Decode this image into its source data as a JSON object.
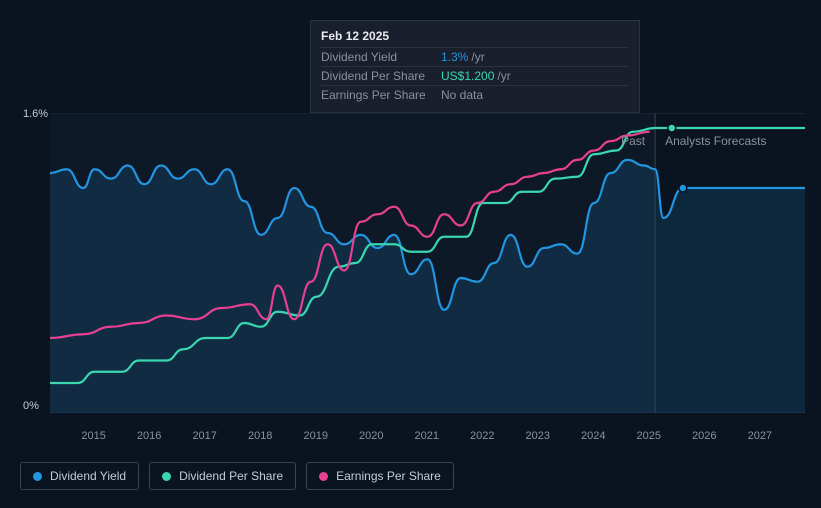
{
  "tooltip": {
    "date": "Feb 12 2025",
    "rows": [
      {
        "label": "Dividend Yield",
        "value": "1.3%",
        "suffix": "/yr",
        "color": "#2394df"
      },
      {
        "label": "Dividend Per Share",
        "value": "US$1.200",
        "suffix": "/yr",
        "color": "#39d6b0"
      },
      {
        "label": "Earnings Per Share",
        "value": "No data",
        "suffix": "",
        "color": "#8a9099"
      }
    ]
  },
  "chart": {
    "background": "#0a1420",
    "grid_color": "#2a3142",
    "ylim": [
      0,
      1.6
    ],
    "y_ticks": [
      {
        "v": 1.6,
        "label": "1.6%"
      },
      {
        "v": 0,
        "label": "0%"
      }
    ],
    "x_years": [
      2015,
      2016,
      2017,
      2018,
      2019,
      2020,
      2021,
      2022,
      2023,
      2024,
      2025,
      2026,
      2027
    ],
    "x_domain": [
      2014.2,
      2027.8
    ],
    "past_end": 2025.1,
    "labels": {
      "past": "Past",
      "forecast": "Analysts Forecasts"
    },
    "series": {
      "dividend_yield": {
        "name": "Dividend Yield",
        "color": "#2394df",
        "fill": "rgba(35,148,223,0.15)",
        "points": [
          [
            2014.2,
            1.28
          ],
          [
            2014.5,
            1.3
          ],
          [
            2014.8,
            1.2
          ],
          [
            2015.0,
            1.3
          ],
          [
            2015.3,
            1.25
          ],
          [
            2015.6,
            1.32
          ],
          [
            2015.9,
            1.22
          ],
          [
            2016.2,
            1.32
          ],
          [
            2016.5,
            1.25
          ],
          [
            2016.8,
            1.3
          ],
          [
            2017.1,
            1.22
          ],
          [
            2017.4,
            1.3
          ],
          [
            2017.7,
            1.13
          ],
          [
            2018.0,
            0.95
          ],
          [
            2018.3,
            1.04
          ],
          [
            2018.6,
            1.2
          ],
          [
            2018.9,
            1.1
          ],
          [
            2019.2,
            0.96
          ],
          [
            2019.5,
            0.9
          ],
          [
            2019.8,
            0.95
          ],
          [
            2020.1,
            0.88
          ],
          [
            2020.4,
            0.95
          ],
          [
            2020.7,
            0.74
          ],
          [
            2021.0,
            0.82
          ],
          [
            2021.3,
            0.55
          ],
          [
            2021.6,
            0.72
          ],
          [
            2021.9,
            0.7
          ],
          [
            2022.2,
            0.8
          ],
          [
            2022.5,
            0.95
          ],
          [
            2022.8,
            0.78
          ],
          [
            2023.1,
            0.88
          ],
          [
            2023.4,
            0.9
          ],
          [
            2023.7,
            0.85
          ],
          [
            2024.0,
            1.12
          ],
          [
            2024.3,
            1.28
          ],
          [
            2024.6,
            1.35
          ],
          [
            2024.9,
            1.32
          ],
          [
            2025.1,
            1.3
          ],
          [
            2025.25,
            1.04
          ],
          [
            2025.6,
            1.2
          ],
          [
            2027.8,
            1.2
          ]
        ],
        "end_dot": [
          2025.6,
          1.2
        ]
      },
      "dividend_per_share": {
        "name": "Dividend Per Share",
        "color": "#39d6b0",
        "points": [
          [
            2014.2,
            0.16
          ],
          [
            2014.7,
            0.16
          ],
          [
            2015.0,
            0.22
          ],
          [
            2015.5,
            0.22
          ],
          [
            2015.8,
            0.28
          ],
          [
            2016.3,
            0.28
          ],
          [
            2016.6,
            0.34
          ],
          [
            2017.0,
            0.4
          ],
          [
            2017.4,
            0.4
          ],
          [
            2017.7,
            0.48
          ],
          [
            2018.0,
            0.46
          ],
          [
            2018.3,
            0.54
          ],
          [
            2018.7,
            0.52
          ],
          [
            2019.0,
            0.62
          ],
          [
            2019.4,
            0.78
          ],
          [
            2019.7,
            0.8
          ],
          [
            2020.0,
            0.9
          ],
          [
            2020.4,
            0.9
          ],
          [
            2020.7,
            0.86
          ],
          [
            2021.0,
            0.86
          ],
          [
            2021.3,
            0.94
          ],
          [
            2021.7,
            0.94
          ],
          [
            2022.0,
            1.12
          ],
          [
            2022.4,
            1.12
          ],
          [
            2022.7,
            1.18
          ],
          [
            2023.0,
            1.18
          ],
          [
            2023.3,
            1.25
          ],
          [
            2023.7,
            1.26
          ],
          [
            2024.0,
            1.38
          ],
          [
            2024.4,
            1.4
          ],
          [
            2024.7,
            1.5
          ],
          [
            2025.1,
            1.52
          ],
          [
            2025.4,
            1.52
          ],
          [
            2027.8,
            1.52
          ]
        ],
        "end_dot": [
          2025.4,
          1.52
        ]
      },
      "earnings_per_share": {
        "name": "Earnings Per Share",
        "color": "#e64091",
        "points": [
          [
            2014.2,
            0.4
          ],
          [
            2014.8,
            0.42
          ],
          [
            2015.3,
            0.46
          ],
          [
            2015.8,
            0.48
          ],
          [
            2016.3,
            0.52
          ],
          [
            2016.8,
            0.5
          ],
          [
            2017.3,
            0.56
          ],
          [
            2017.8,
            0.58
          ],
          [
            2018.1,
            0.5
          ],
          [
            2018.3,
            0.68
          ],
          [
            2018.6,
            0.5
          ],
          [
            2018.9,
            0.7
          ],
          [
            2019.2,
            0.9
          ],
          [
            2019.5,
            0.76
          ],
          [
            2019.8,
            1.02
          ],
          [
            2020.1,
            1.06
          ],
          [
            2020.4,
            1.1
          ],
          [
            2020.7,
            1.0
          ],
          [
            2021.0,
            0.94
          ],
          [
            2021.3,
            1.06
          ],
          [
            2021.6,
            1.0
          ],
          [
            2021.9,
            1.12
          ],
          [
            2022.2,
            1.18
          ],
          [
            2022.5,
            1.22
          ],
          [
            2022.8,
            1.26
          ],
          [
            2023.1,
            1.28
          ],
          [
            2023.4,
            1.3
          ],
          [
            2023.7,
            1.35
          ],
          [
            2024.0,
            1.4
          ],
          [
            2024.3,
            1.45
          ],
          [
            2024.6,
            1.48
          ],
          [
            2025.0,
            1.5
          ]
        ]
      }
    }
  },
  "legend": [
    {
      "label": "Dividend Yield",
      "color": "#2394df"
    },
    {
      "label": "Dividend Per Share",
      "color": "#39d6b0"
    },
    {
      "label": "Earnings Per Share",
      "color": "#e64091"
    }
  ]
}
